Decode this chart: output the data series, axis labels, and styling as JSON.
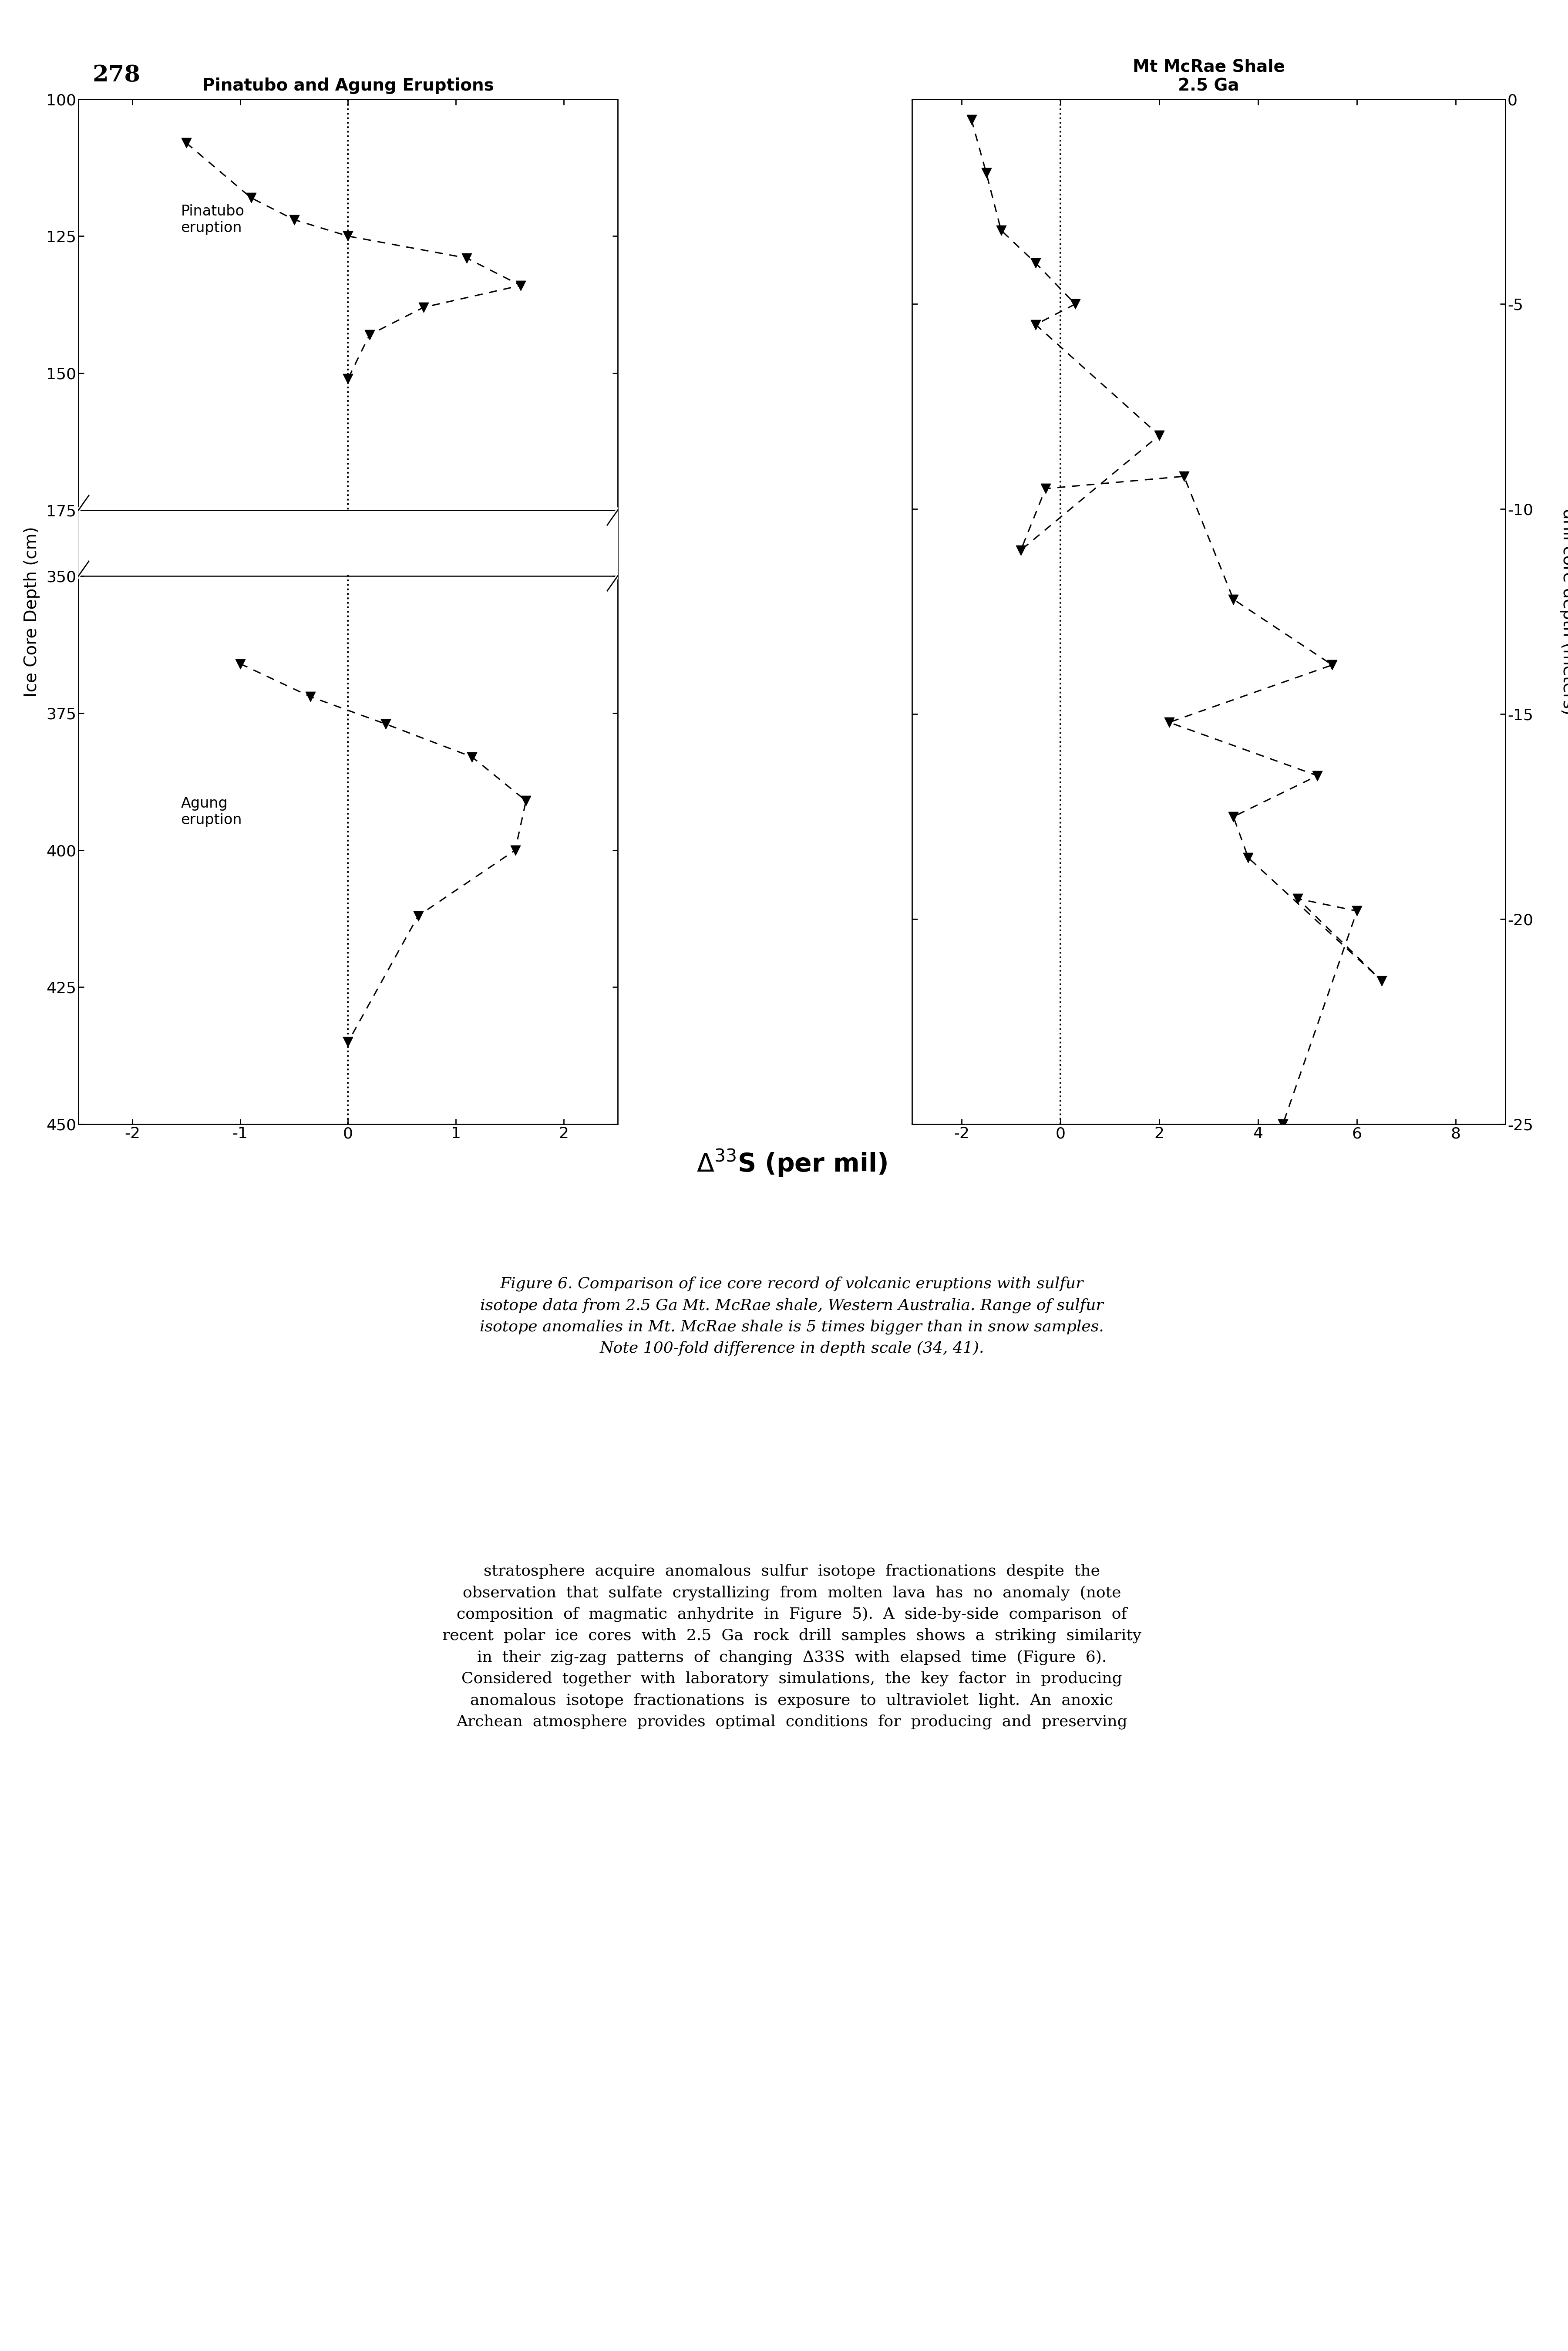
{
  "page_number": "278",
  "left_title": "Pinatubo and Agung Eruptions",
  "right_title": "Mt McRae Shale\n2.5 Ga",
  "left_ylabel": "Ice Core Depth (cm)",
  "right_ylabel": "drill core depth (meters)",
  "shared_xlabel": "Δ33S (per mil)",
  "left_xlim": [
    -2.5,
    2.5
  ],
  "left_xticks": [
    -2,
    -1,
    0,
    1,
    2
  ],
  "left_yticks_real": [
    100,
    125,
    150,
    175,
    350,
    375,
    400,
    425,
    450
  ],
  "left_ytick_labels": [
    "100",
    "125",
    "150",
    "175",
    "350",
    "375",
    "400",
    "425",
    "450"
  ],
  "right_xlim": [
    -3,
    9
  ],
  "right_xticks": [
    -2,
    0,
    2,
    4,
    6,
    8
  ],
  "right_yticks": [
    0,
    -5,
    -10,
    -15,
    -20,
    -25
  ],
  "pinatubo_x": [
    -1.5,
    -0.9,
    -0.5,
    0.0,
    1.1,
    1.6,
    0.7,
    0.2,
    0.0
  ],
  "pinatubo_y": [
    108,
    118,
    122,
    125,
    129,
    134,
    138,
    143,
    151
  ],
  "agung_x": [
    -1.0,
    -0.35,
    0.35,
    1.15,
    1.65,
    1.55,
    0.65,
    0.0
  ],
  "agung_y": [
    366,
    372,
    377,
    383,
    391,
    400,
    412,
    435
  ],
  "shale_x": [
    -1.8,
    -1.5,
    -1.2,
    -0.5,
    0.3,
    -0.5,
    2.0,
    -0.8,
    -0.3,
    2.5,
    3.5,
    5.5,
    2.2,
    5.2,
    3.5,
    3.8,
    6.5,
    4.8,
    6.0,
    4.5
  ],
  "shale_y": [
    -0.5,
    -1.8,
    -3.2,
    -4.0,
    -5.0,
    -5.5,
    -8.2,
    -11.0,
    -9.5,
    -9.2,
    -12.2,
    -13.8,
    -15.2,
    -16.5,
    -17.5,
    -18.5,
    -21.5,
    -19.5,
    -19.8,
    -25.0
  ],
  "bg_color": "#ffffff"
}
